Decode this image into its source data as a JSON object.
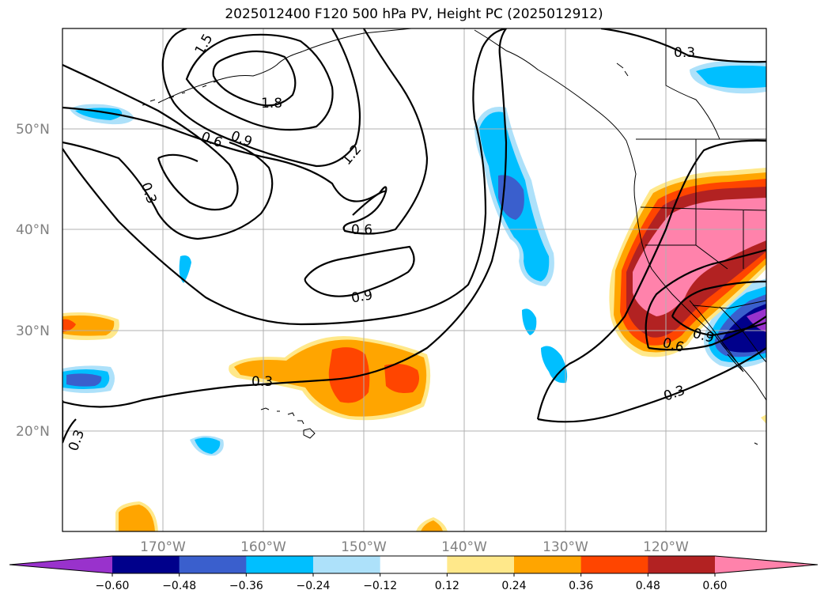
{
  "title": "2025012400 F120 500 hPa PV, Height PC (2025012912)",
  "lat_labels": [
    "50°N",
    "40°N",
    "30°N",
    "20°N"
  ],
  "lon_labels": [
    "170°W",
    "160°W",
    "150°W",
    "140°W",
    "130°W",
    "120°W"
  ],
  "colorbar": {
    "ticks": [
      "−0.60",
      "−0.48",
      "−0.36",
      "−0.24",
      "−0.12",
      "0.12",
      "0.24",
      "0.36",
      "0.48",
      "0.60"
    ],
    "colors": [
      "#9932CC",
      "#00008B",
      "#3A5FCD",
      "#00BFFF",
      "#ADE1FA",
      "#FFFFFF",
      "#FFE88A",
      "#FFA500",
      "#FF4500",
      "#B22222",
      "#FF82AB"
    ]
  },
  "contour_labels": [
    "1.5",
    "1.8",
    "0.6",
    "0.9",
    "1.2",
    "0.3",
    "0.6",
    "0.9",
    "0.3",
    "0.3",
    "0.3",
    "0.6",
    "0.9",
    "0.3"
  ],
  "map": {
    "projection": "equirectangular",
    "lon_range": [
      -180,
      -110
    ],
    "lat_range": [
      10,
      60
    ],
    "gridlines": true
  }
}
